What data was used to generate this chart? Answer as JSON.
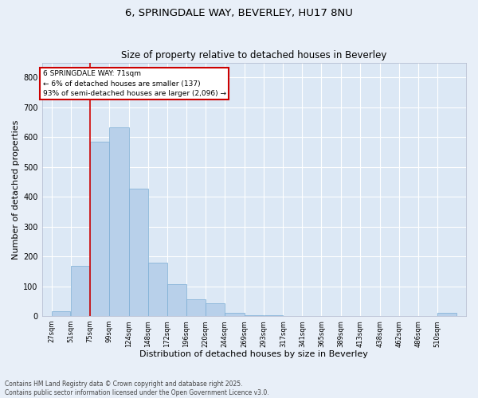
{
  "title_line1": "6, SPRINGDALE WAY, BEVERLEY, HU17 8NU",
  "title_line2": "Size of property relative to detached houses in Beverley",
  "xlabel": "Distribution of detached houses by size in Beverley",
  "ylabel": "Number of detached properties",
  "bar_color": "#b8d0ea",
  "bar_edge_color": "#7aadd4",
  "background_color": "#dce8f5",
  "grid_color": "#ffffff",
  "annotation_box_color": "#cc0000",
  "annotation_text": "6 SPRINGDALE WAY: 71sqm\n← 6% of detached houses are smaller (137)\n93% of semi-detached houses are larger (2,096) →",
  "vline_color": "#cc0000",
  "categories": [
    "27sqm",
    "51sqm",
    "75sqm",
    "99sqm",
    "124sqm",
    "148sqm",
    "172sqm",
    "196sqm",
    "220sqm",
    "244sqm",
    "269sqm",
    "293sqm",
    "317sqm",
    "341sqm",
    "365sqm",
    "389sqm",
    "413sqm",
    "438sqm",
    "462sqm",
    "486sqm",
    "510sqm"
  ],
  "bin_starts": [
    27,
    51,
    75,
    99,
    124,
    148,
    172,
    196,
    220,
    244,
    269,
    293,
    317,
    341,
    365,
    389,
    413,
    438,
    462,
    486,
    510
  ],
  "values": [
    15,
    169,
    585,
    634,
    427,
    180,
    107,
    57,
    42,
    10,
    3,
    2,
    0,
    1,
    0,
    0,
    0,
    0,
    0,
    0,
    10
  ],
  "ylim": [
    0,
    850
  ],
  "yticks": [
    0,
    100,
    200,
    300,
    400,
    500,
    600,
    700,
    800
  ],
  "vline_x_bin_index": 1,
  "footnote": "Contains HM Land Registry data © Crown copyright and database right 2025.\nContains public sector information licensed under the Open Government Licence v3.0.",
  "fig_facecolor": "#e8eff8",
  "title_fontsize": 9.5,
  "subtitle_fontsize": 8.5,
  "ylabel_fontsize": 8,
  "xlabel_fontsize": 8,
  "tick_fontsize": 6,
  "footnote_fontsize": 5.5
}
